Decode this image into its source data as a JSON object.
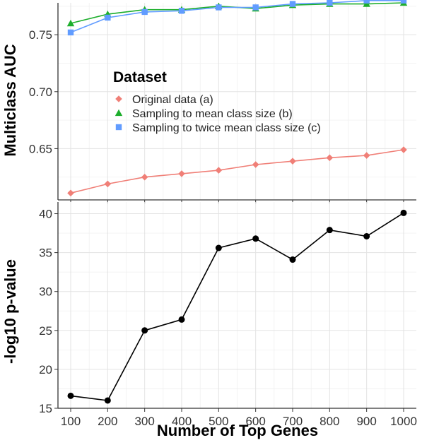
{
  "chart_data": [
    {
      "type": "line",
      "ylabel": "Multiclass AUC",
      "xlabel": "",
      "x": [
        100,
        200,
        300,
        400,
        500,
        600,
        700,
        800,
        900,
        1000
      ],
      "ylim": [
        0.605,
        0.778
      ],
      "y_ticks": [
        "0.65",
        "0.70",
        "0.75"
      ],
      "y_tick_values": [
        0.65,
        0.7,
        0.75
      ],
      "grid": true,
      "legend": {
        "title": "Dataset",
        "placement": "inside-middle-left"
      },
      "series": [
        {
          "name": "Original data (a)",
          "color": "#F07F77",
          "marker": "diamond",
          "values": [
            0.611,
            0.619,
            0.625,
            0.628,
            0.631,
            0.636,
            0.639,
            0.642,
            0.644,
            0.649
          ]
        },
        {
          "name": "Sampling to mean class size (b)",
          "color": "#1DAE2C",
          "marker": "triangle",
          "values": [
            0.76,
            0.768,
            0.772,
            0.772,
            0.775,
            0.773,
            0.776,
            0.777,
            0.777,
            0.778
          ]
        },
        {
          "name": "Sampling to twice mean class size (c)",
          "color": "#619CFF",
          "marker": "square",
          "values": [
            0.752,
            0.765,
            0.77,
            0.771,
            0.774,
            0.774,
            0.777,
            0.778,
            0.78,
            0.78
          ]
        }
      ]
    },
    {
      "type": "line",
      "ylabel": "-log10 p-value",
      "xlabel": "Number of Top Genes",
      "x": [
        100,
        200,
        300,
        400,
        500,
        600,
        700,
        800,
        900,
        1000
      ],
      "x_ticks": [
        "100",
        "200",
        "300",
        "400",
        "500",
        "600",
        "700",
        "800",
        "900",
        "1000"
      ],
      "ylim": [
        15,
        41.5
      ],
      "y_ticks": [
        "15",
        "20",
        "25",
        "30",
        "35",
        "40"
      ],
      "y_tick_values": [
        15,
        20,
        25,
        30,
        35,
        40
      ],
      "grid": true,
      "series": [
        {
          "color": "#000000",
          "marker": "circle",
          "values": [
            16.6,
            16.0,
            25.0,
            26.4,
            35.6,
            36.8,
            34.1,
            37.9,
            37.1,
            40.1
          ]
        }
      ]
    }
  ]
}
